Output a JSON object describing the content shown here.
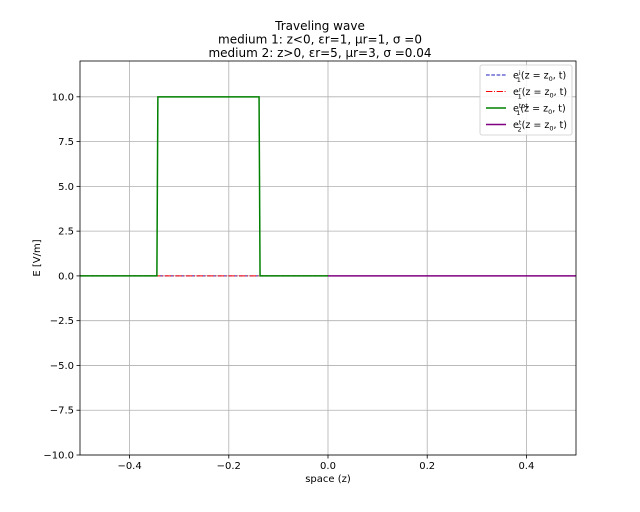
{
  "chart_data": {
    "type": "line",
    "title_lines": [
      "Traveling wave",
      "medium 1: z<0, εr=1, μr=1, σ =0",
      "medium 2: z>0, εr=5, μr=3, σ =0.04"
    ],
    "xlabel": "space (z)",
    "ylabel": "E [V/m]",
    "xlim": [
      -0.5,
      0.5
    ],
    "ylim": [
      -10,
      12
    ],
    "xticks": [
      -0.4,
      -0.2,
      0.0,
      0.2,
      0.4
    ],
    "xtick_labels": [
      "−0.4",
      "−0.2",
      "0.0",
      "0.2",
      "0.4"
    ],
    "yticks": [
      -10.0,
      -7.5,
      -5.0,
      -2.5,
      0.0,
      2.5,
      5.0,
      7.5,
      10.0
    ],
    "ytick_labels": [
      "−10.0",
      "−7.5",
      "−5.0",
      "−2.5",
      "0.0",
      "2.5",
      "5.0",
      "7.5",
      "10.0"
    ],
    "grid": true,
    "legend_position": "top-right",
    "series": [
      {
        "name": "e1i(z = z0, t)",
        "legend": {
          "base": "e",
          "sub": "1",
          "sup": "i",
          "args": "(z = z",
          "args_sub": "0",
          "args_end": ", t)"
        },
        "color": "#1f1fbf",
        "style": "dashed",
        "x": [
          -0.5,
          0.0
        ],
        "y": [
          0.0,
          0.0
        ]
      },
      {
        "name": "e1r(z = z0, t)",
        "legend": {
          "base": "e",
          "sub": "1",
          "sup": "r",
          "args": "(z = z",
          "args_sub": "0",
          "args_end": ", t)"
        },
        "color": "#ff0000",
        "style": "dashdot",
        "x": [
          -0.5,
          0.0
        ],
        "y": [
          0.0,
          0.0
        ]
      },
      {
        "name": "e1tot(z = z0, t)",
        "legend": {
          "base": "e",
          "sub": "1",
          "sup": "tot",
          "args": "(z = z",
          "args_sub": "0",
          "args_end": ", t)"
        },
        "color": "#008000",
        "style": "solid",
        "x": [
          -0.5,
          -0.345,
          -0.343,
          -0.139,
          -0.137,
          0.0
        ],
        "y": [
          0.0,
          0.0,
          10.0,
          10.0,
          0.0,
          0.0
        ]
      },
      {
        "name": "e2t(z = z0, t)",
        "legend": {
          "base": "e",
          "sub": "2",
          "sup": "t",
          "args": "(z = z",
          "args_sub": "0",
          "args_end": ", t)"
        },
        "color": "#800080",
        "style": "solid",
        "x": [
          0.0,
          0.5
        ],
        "y": [
          0.0,
          0.0
        ]
      }
    ]
  }
}
